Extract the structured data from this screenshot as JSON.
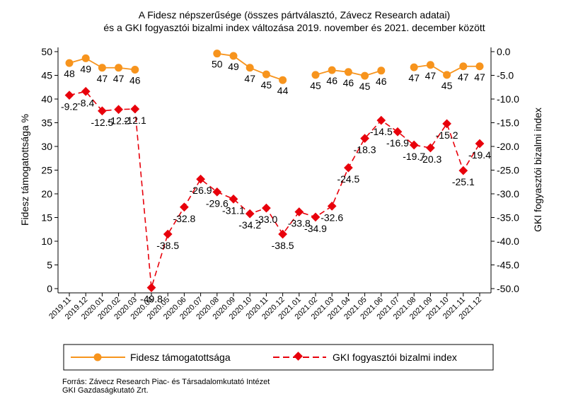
{
  "chart_data": {
    "type": "line",
    "title_lines": [
      "A Fidesz népszerűsége (összes pártválasztó, Závecz Research adatai)",
      "és a GKI fogyasztói bizalmi index változása 2019. november és 2021. december között"
    ],
    "ylabel_left": "Fidesz támogatottsága %",
    "ylabel_right": "GKI fogyasztói bizalmi index",
    "ylim_left": [
      0,
      50
    ],
    "ylim_right": [
      -50,
      0
    ],
    "yticks_left": [
      0,
      5,
      10,
      15,
      20,
      25,
      30,
      35,
      40,
      45,
      50
    ],
    "yticks_right": [
      "-50.0",
      "-45.0",
      "-40.0",
      "-35.0",
      "-30.0",
      "-25.0",
      "-20.0",
      "-15.0",
      "-10.0",
      "-5.0",
      "0.0"
    ],
    "categories": [
      "2019.11",
      "2019.12",
      "2020.01",
      "2020.02",
      "2020.03",
      "2020.04",
      "2020.05",
      "2020.06",
      "2020.07",
      "2020.08",
      "2020.09",
      "2020.10",
      "2020.11",
      "2020.12",
      "2021.01",
      "2021.02",
      "2021.03",
      "2021.04",
      "2021.05",
      "2021.06",
      "2021.07",
      "2021.08",
      "2021.09",
      "2021.10",
      "2021.11",
      "2021.12"
    ],
    "series": [
      {
        "name": "Fidesz támogatottsága",
        "axis": "left",
        "color": "#f7941d",
        "marker": "circle",
        "values": [
          47.6,
          48.6,
          46.6,
          46.6,
          46.2,
          null,
          null,
          null,
          null,
          49.6,
          49.1,
          46.6,
          45.2,
          44.0,
          null,
          45.1,
          46.1,
          45.7,
          44.9,
          46.0,
          null,
          46.7,
          47.2,
          45.1,
          46.9,
          46.9
        ],
        "labels": [
          "48",
          "49",
          "47",
          "47",
          "46",
          "",
          "",
          "",
          "",
          "50",
          "49",
          "47",
          "45",
          "44",
          "",
          "45",
          "46",
          "46",
          "45",
          "46",
          "",
          "47",
          "47",
          "45",
          "47",
          "47"
        ]
      },
      {
        "name": "GKI fogyasztói bizalmi index",
        "axis": "right",
        "color": "#e8000b",
        "marker": "diamond",
        "values": [
          -9.2,
          -8.4,
          -12.5,
          -12.2,
          -12.1,
          -49.8,
          -38.5,
          -32.8,
          -26.9,
          -29.6,
          -31.1,
          -34.2,
          -33.0,
          -38.5,
          -33.8,
          -34.9,
          -32.6,
          -24.5,
          -18.3,
          -14.5,
          -16.9,
          -19.7,
          -20.3,
          -15.2,
          -25.1,
          -19.4
        ],
        "labels": [
          "-9.2",
          "-8.4",
          "-12.5",
          "-12.2",
          "-12.1",
          "-49.8",
          "-38.5",
          "-32.8",
          "-26.9",
          "-29.6",
          "-31.1",
          "-34.2",
          "-33.0",
          "-38.5",
          "-33.8",
          "-34.9",
          "-32.6",
          "-24.5",
          "-18.3",
          "-14.5",
          "-16.9",
          "-19.7",
          "-20.3",
          "-15.2",
          "-25.1",
          "-19.4"
        ]
      }
    ],
    "legend_position": "bottom",
    "grid": false
  },
  "source_lines": [
    "Forrás: Závecz Research Piac- és Társadalomkutató Intézet",
    "GKI Gazdaságkutató Zrt."
  ]
}
